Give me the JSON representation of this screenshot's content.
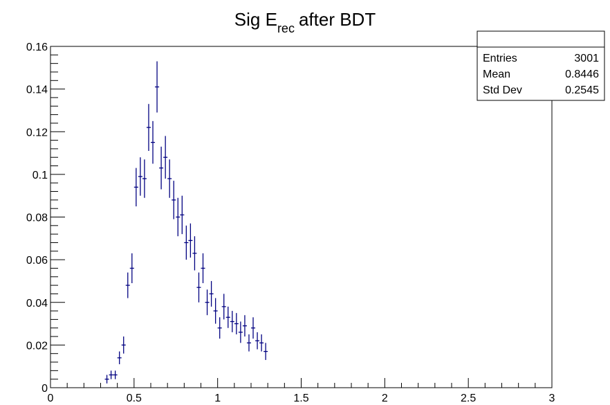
{
  "chart_data": {
    "type": "scatter",
    "title": {
      "main": "Sig E",
      "subscript": "rec",
      "suffix": "after  BDT"
    },
    "xlabel": "",
    "ylabel": "",
    "xlim": [
      0,
      3
    ],
    "ylim": [
      0,
      0.16
    ],
    "x_ticks": [
      0,
      0.5,
      1,
      1.5,
      2,
      2.5,
      3
    ],
    "x_tick_labels": [
      "0",
      "0.5",
      "1",
      "1.5",
      "2",
      "2.5",
      "3"
    ],
    "y_ticks": [
      0,
      0.02,
      0.04,
      0.06,
      0.08,
      0.1,
      0.12,
      0.14,
      0.16
    ],
    "y_tick_labels": [
      "0",
      "0.02",
      "0.04",
      "0.06",
      "0.08",
      "0.1",
      "0.12",
      "0.14",
      "0.16"
    ],
    "bin_width": 0.025,
    "grid": false,
    "color": "#000080",
    "stats_box": {
      "position": "top-right",
      "rows": [
        {
          "label": "Entries",
          "value": "3001"
        },
        {
          "label": "Mean",
          "value": "0.8446"
        },
        {
          "label": "Std Dev",
          "value": "0.2545"
        }
      ]
    },
    "series": [
      {
        "points": [
          {
            "x": 0.3375,
            "y": 0.004,
            "err": 0.002
          },
          {
            "x": 0.3625,
            "y": 0.006,
            "err": 0.002
          },
          {
            "x": 0.3875,
            "y": 0.006,
            "err": 0.002
          },
          {
            "x": 0.4125,
            "y": 0.014,
            "err": 0.003
          },
          {
            "x": 0.4375,
            "y": 0.02,
            "err": 0.004
          },
          {
            "x": 0.4625,
            "y": 0.048,
            "err": 0.006
          },
          {
            "x": 0.4875,
            "y": 0.056,
            "err": 0.007
          },
          {
            "x": 0.5125,
            "y": 0.094,
            "err": 0.009
          },
          {
            "x": 0.5375,
            "y": 0.099,
            "err": 0.009
          },
          {
            "x": 0.5625,
            "y": 0.098,
            "err": 0.009
          },
          {
            "x": 0.5875,
            "y": 0.122,
            "err": 0.011
          },
          {
            "x": 0.6125,
            "y": 0.115,
            "err": 0.01
          },
          {
            "x": 0.6375,
            "y": 0.141,
            "err": 0.012
          },
          {
            "x": 0.6625,
            "y": 0.103,
            "err": 0.01
          },
          {
            "x": 0.6875,
            "y": 0.108,
            "err": 0.01
          },
          {
            "x": 0.7125,
            "y": 0.098,
            "err": 0.009
          },
          {
            "x": 0.7375,
            "y": 0.088,
            "err": 0.009
          },
          {
            "x": 0.7625,
            "y": 0.08,
            "err": 0.009
          },
          {
            "x": 0.7875,
            "y": 0.081,
            "err": 0.009
          },
          {
            "x": 0.8125,
            "y": 0.068,
            "err": 0.008
          },
          {
            "x": 0.8375,
            "y": 0.069,
            "err": 0.008
          },
          {
            "x": 0.8625,
            "y": 0.063,
            "err": 0.008
          },
          {
            "x": 0.8875,
            "y": 0.047,
            "err": 0.007
          },
          {
            "x": 0.9125,
            "y": 0.056,
            "err": 0.007
          },
          {
            "x": 0.9375,
            "y": 0.04,
            "err": 0.006
          },
          {
            "x": 0.9625,
            "y": 0.044,
            "err": 0.006
          },
          {
            "x": 0.9875,
            "y": 0.036,
            "err": 0.006
          },
          {
            "x": 1.0125,
            "y": 0.028,
            "err": 0.005
          },
          {
            "x": 1.0375,
            "y": 0.038,
            "err": 0.006
          },
          {
            "x": 1.0625,
            "y": 0.033,
            "err": 0.005
          },
          {
            "x": 1.0875,
            "y": 0.031,
            "err": 0.005
          },
          {
            "x": 1.1125,
            "y": 0.03,
            "err": 0.005
          },
          {
            "x": 1.1375,
            "y": 0.026,
            "err": 0.005
          },
          {
            "x": 1.1625,
            "y": 0.029,
            "err": 0.005
          },
          {
            "x": 1.1875,
            "y": 0.021,
            "err": 0.004
          },
          {
            "x": 1.2125,
            "y": 0.028,
            "err": 0.005
          },
          {
            "x": 1.2375,
            "y": 0.022,
            "err": 0.004
          },
          {
            "x": 1.2625,
            "y": 0.021,
            "err": 0.004
          },
          {
            "x": 1.2875,
            "y": 0.017,
            "err": 0.004
          }
        ]
      }
    ]
  }
}
